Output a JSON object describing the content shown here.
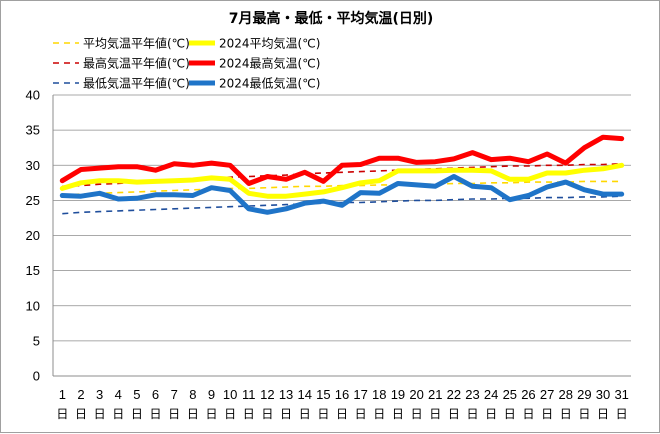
{
  "chart_data": {
    "type": "line",
    "title": "7月最高・最低・平均気温(日別)",
    "xlabel": "",
    "ylabel": "",
    "ylim": [
      0,
      40
    ],
    "yticks": [
      0,
      5,
      10,
      15,
      20,
      25,
      30,
      35,
      40
    ],
    "grid": "horizontal",
    "legend_position": "top",
    "categories": [
      "1",
      "2",
      "3",
      "4",
      "5",
      "6",
      "7",
      "8",
      "9",
      "10",
      "11",
      "12",
      "13",
      "14",
      "15",
      "16",
      "17",
      "18",
      "19",
      "20",
      "21",
      "22",
      "23",
      "24",
      "25",
      "26",
      "27",
      "28",
      "29",
      "30",
      "31"
    ],
    "category_suffix": "日",
    "series": [
      {
        "name": "平均気温平年値(℃)",
        "color": "#ffd700",
        "style": "dashed",
        "values": [
          25.8,
          25.9,
          26.0,
          26.1,
          26.2,
          26.3,
          26.4,
          26.5,
          26.6,
          26.7,
          26.7,
          26.8,
          26.9,
          27.0,
          27.0,
          27.1,
          27.1,
          27.2,
          27.2,
          27.3,
          27.3,
          27.4,
          27.4,
          27.5,
          27.5,
          27.6,
          27.6,
          27.6,
          27.7,
          27.7,
          27.7
        ]
      },
      {
        "name": "2024平均気温(℃)",
        "color": "#ffff00",
        "style": "solid",
        "values": [
          26.7,
          27.5,
          27.8,
          27.8,
          27.6,
          27.7,
          27.8,
          27.9,
          28.2,
          28.0,
          26.0,
          25.6,
          25.6,
          25.9,
          26.2,
          26.8,
          27.5,
          27.8,
          29.2,
          29.2,
          29.2,
          29.3,
          29.3,
          29.2,
          28.0,
          28.0,
          28.9,
          28.9,
          29.3,
          29.5,
          30.0
        ]
      },
      {
        "name": "最高気温平年値(℃)",
        "color": "#cc0000",
        "style": "dashed",
        "values": [
          27.0,
          27.1,
          27.3,
          27.4,
          27.6,
          27.8,
          27.9,
          28.0,
          28.2,
          28.3,
          28.4,
          28.5,
          28.6,
          28.8,
          28.9,
          29.0,
          29.1,
          29.2,
          29.3,
          29.4,
          29.5,
          29.6,
          29.7,
          29.8,
          29.9,
          29.9,
          30.0,
          30.0,
          30.1,
          30.1,
          30.2
        ]
      },
      {
        "name": "2024最高気温(℃)",
        "color": "#ff0000",
        "style": "solid",
        "values": [
          27.8,
          29.4,
          29.6,
          29.8,
          29.8,
          29.3,
          30.2,
          30.0,
          30.3,
          30.0,
          27.4,
          28.4,
          28.0,
          29.0,
          27.7,
          30.0,
          30.1,
          31.0,
          31.0,
          30.4,
          30.5,
          30.9,
          31.8,
          30.8,
          31.0,
          30.5,
          31.6,
          30.3,
          32.5,
          34.0,
          33.8
        ]
      },
      {
        "name": "最低気温平年値(℃)",
        "color": "#1f4e9c",
        "style": "dashed",
        "values": [
          23.1,
          23.3,
          23.4,
          23.5,
          23.6,
          23.7,
          23.8,
          23.9,
          24.0,
          24.1,
          24.2,
          24.3,
          24.4,
          24.5,
          24.6,
          24.7,
          24.7,
          24.8,
          24.9,
          25.0,
          25.0,
          25.1,
          25.2,
          25.2,
          25.3,
          25.3,
          25.4,
          25.4,
          25.5,
          25.5,
          25.6
        ]
      },
      {
        "name": "2024最低気温(℃)",
        "color": "#1f74c8",
        "style": "solid",
        "values": [
          25.7,
          25.6,
          26.0,
          25.2,
          25.3,
          25.8,
          25.8,
          25.7,
          26.8,
          26.4,
          23.8,
          23.3,
          23.8,
          24.6,
          24.9,
          24.3,
          26.1,
          26.0,
          27.4,
          27.2,
          27.0,
          28.4,
          27.0,
          26.8,
          25.1,
          25.7,
          26.9,
          27.6,
          26.5,
          25.9,
          25.9
        ]
      }
    ]
  }
}
